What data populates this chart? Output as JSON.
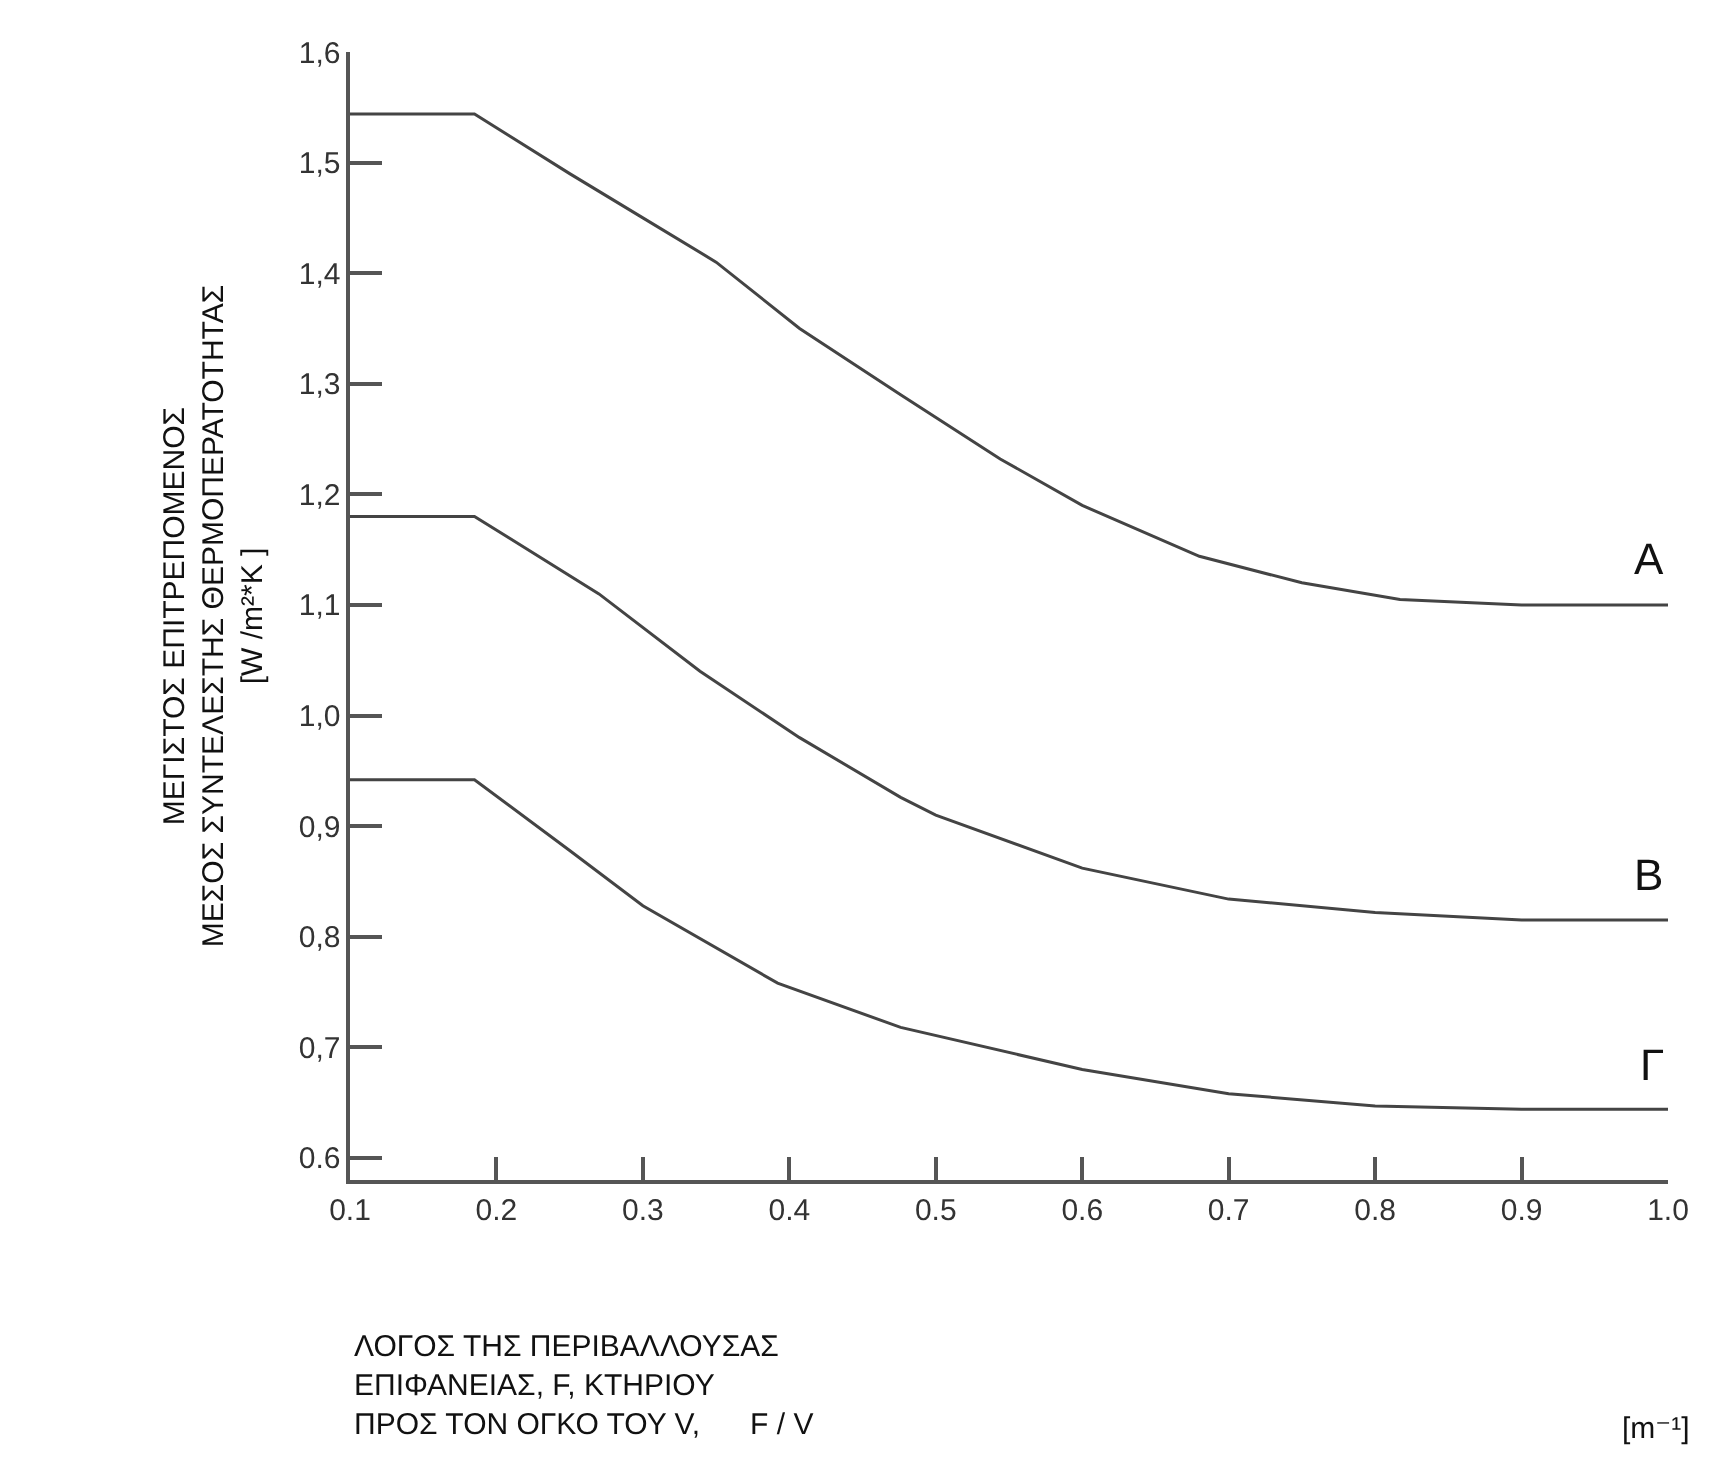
{
  "chart_data": {
    "type": "line",
    "xlabel": "ΛΟΓΟΣ ΤΗΣ ΠΕΡΙΒΑΛΛΟΥΣΑΣ\nΕΠΙΦΑΝΕΙΑΣ, F, ΚΤΗΡΙΟΥ\nΠΡΟΣ ΤΟΝ ΟΓΚΟ ΤΟΥ V,      F / V",
    "ylabel": "ΜΕΓΙΣΤΟΣ ΕΠΙΤΡΕΠΟΜΕΝΟΣ\nΜΕΣΟΣ ΣΥΝΤΕΛΕΣΤΗΣ ΘΕΡΜΟΠΕΡΑΤΟΤΗΤΑΣ\n[W /m²*K ]",
    "annotations": [
      "[m⁻¹]"
    ],
    "xlim": [
      0.1,
      1.0
    ],
    "ylim": [
      0.58,
      1.6
    ],
    "xticks": [
      0.1,
      0.2,
      0.3,
      0.4,
      0.5,
      0.6,
      0.7,
      0.8,
      0.9,
      {
        "value": 1.0,
        "label": "1.0"
      }
    ],
    "yticks": [
      {
        "value": 0.6,
        "label": "0.6"
      },
      {
        "value": 0.7,
        "label": "0,7"
      },
      {
        "value": 0.8,
        "label": "0,8"
      },
      {
        "value": 0.9,
        "label": "0,9"
      },
      {
        "value": 1.0,
        "label": "1,0"
      },
      {
        "value": 1.1,
        "label": "1,1"
      },
      {
        "value": 1.2,
        "label": "1,2"
      },
      {
        "value": 1.3,
        "label": "1,3"
      },
      {
        "value": 1.4,
        "label": "1,4"
      },
      {
        "value": 1.5,
        "label": "1,5"
      },
      {
        "value": 1.6,
        "label": "1,6"
      }
    ],
    "grid": false,
    "legend": false,
    "marker": "none",
    "line_style": "solid",
    "series": [
      {
        "name": "A",
        "color": "#444444",
        "x": [
          0.1,
          0.185,
          0.25,
          0.3,
          0.35,
          0.407,
          0.476,
          0.544,
          0.6,
          0.68,
          0.75,
          0.817,
          0.9,
          1.0
        ],
        "values": [
          1.544,
          1.544,
          1.49,
          1.45,
          1.41,
          1.35,
          1.29,
          1.232,
          1.19,
          1.144,
          1.12,
          1.105,
          1.1,
          1.1
        ]
      },
      {
        "name": "B",
        "color": "#444444",
        "x": [
          0.1,
          0.185,
          0.27,
          0.339,
          0.407,
          0.476,
          0.5,
          0.6,
          0.7,
          0.8,
          0.9,
          1.0
        ],
        "values": [
          1.18,
          1.18,
          1.11,
          1.04,
          0.98,
          0.926,
          0.91,
          0.862,
          0.834,
          0.822,
          0.815,
          0.815
        ]
      },
      {
        "name": "Γ",
        "color": "#444444",
        "x": [
          0.1,
          0.185,
          0.25,
          0.3,
          0.392,
          0.476,
          0.6,
          0.7,
          0.8,
          0.9,
          1.0
        ],
        "values": [
          0.942,
          0.942,
          0.878,
          0.828,
          0.758,
          0.718,
          0.68,
          0.658,
          0.647,
          0.644,
          0.644
        ]
      }
    ]
  }
}
